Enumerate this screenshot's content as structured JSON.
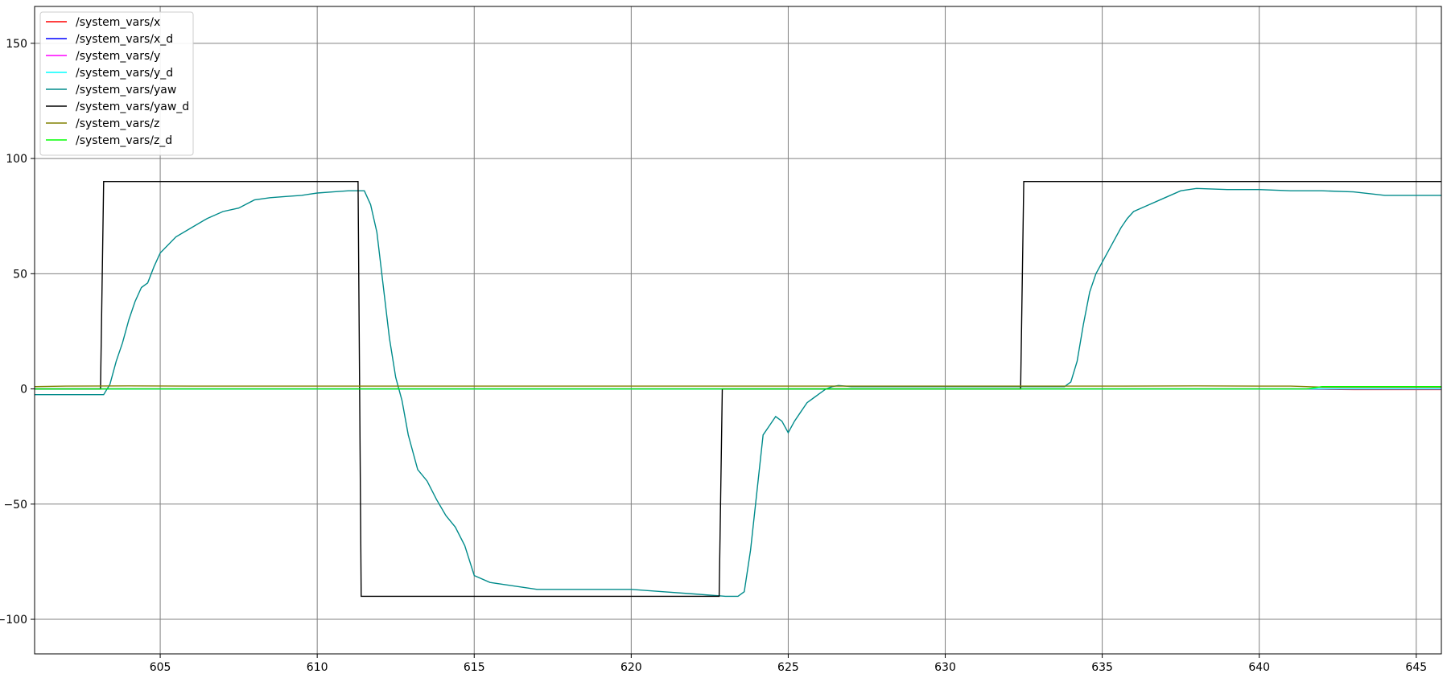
{
  "chart_data": {
    "type": "line",
    "title": "",
    "xlabel": "",
    "ylabel": "",
    "xlim": [
      601,
      645.8
    ],
    "ylim": [
      -115,
      166
    ],
    "grid": true,
    "legend_placement": "upper-left",
    "x_ticks": [
      605,
      610,
      615,
      620,
      625,
      630,
      635,
      640,
      645
    ],
    "y_ticks": [
      -100,
      -50,
      0,
      50,
      100,
      150
    ],
    "x_tick_labels": [
      "605",
      "610",
      "615",
      "620",
      "625",
      "630",
      "635",
      "640",
      "645"
    ],
    "y_tick_labels": [
      "−100",
      "−50",
      "0",
      "50",
      "100",
      "150"
    ],
    "series": [
      {
        "name": "/system_vars/x",
        "color": "#ff0000",
        "x": [
          601,
          641,
          642,
          643,
          645.8
        ],
        "y": [
          0.0,
          0.0,
          -0.2,
          -0.3,
          -0.3
        ]
      },
      {
        "name": "/system_vars/x_d",
        "color": "#0000ff",
        "x": [
          601,
          645.8
        ],
        "y": [
          0.0,
          0.0
        ]
      },
      {
        "name": "/system_vars/y",
        "color": "#ff00ff",
        "x": [
          601,
          645.8
        ],
        "y": [
          0.0,
          0.0
        ]
      },
      {
        "name": "/system_vars/y_d",
        "color": "#00ffff",
        "x": [
          601,
          645.8
        ],
        "y": [
          0.0,
          0.0
        ]
      },
      {
        "name": "/system_vars/yaw",
        "color": "#008b8b",
        "x": [
          601,
          603.2,
          603.4,
          603.6,
          603.8,
          604.0,
          604.2,
          604.4,
          604.6,
          604.8,
          605.0,
          605.5,
          606.0,
          606.5,
          607.0,
          607.5,
          608.0,
          608.5,
          609.0,
          609.5,
          610.0,
          610.5,
          611.0,
          611.5,
          611.7,
          611.9,
          612.1,
          612.3,
          612.5,
          612.7,
          612.9,
          613.2,
          613.5,
          613.8,
          614.1,
          614.4,
          614.7,
          615.0,
          615.5,
          616.0,
          616.5,
          617.0,
          618.0,
          619.0,
          620.0,
          621.0,
          622.0,
          623.0,
          623.4,
          623.6,
          623.8,
          624.0,
          624.2,
          624.4,
          624.6,
          624.8,
          625.0,
          625.2,
          625.4,
          625.6,
          625.8,
          626.0,
          626.2,
          626.4,
          626.6,
          627.0,
          628.0,
          629.0,
          630.0,
          631.0,
          632.0,
          633.0,
          633.8,
          634.0,
          634.2,
          634.4,
          634.6,
          634.8,
          635.0,
          635.2,
          635.4,
          635.6,
          635.8,
          636.0,
          636.5,
          637.0,
          637.5,
          638.0,
          639.0,
          640.0,
          641.0,
          642.0,
          643.0,
          644.0,
          645.0,
          645.8
        ],
        "y": [
          -2.5,
          -2.5,
          2,
          12,
          20,
          30,
          38,
          44,
          46,
          53,
          59,
          66,
          70,
          74,
          77,
          78.5,
          82,
          83,
          83.5,
          84,
          85,
          85.5,
          86,
          86,
          80,
          68,
          45,
          22,
          5,
          -5,
          -20,
          -35,
          -40,
          -48,
          -55,
          -60,
          -68,
          -81,
          -84,
          -85,
          -86,
          -87,
          -87,
          -87,
          -87,
          -88,
          -89,
          -90,
          -90,
          -88,
          -70,
          -45,
          -20,
          -16,
          -12,
          -14,
          -19,
          -14,
          -10,
          -6,
          -4,
          -2,
          0,
          1,
          1.5,
          1,
          1,
          1,
          1,
          1,
          1,
          1,
          1,
          3,
          12,
          28,
          42,
          50,
          55,
          60,
          65,
          70,
          74,
          77,
          80,
          83,
          86,
          87,
          86.5,
          86.5,
          86,
          86,
          85.5,
          84,
          84,
          84
        ]
      },
      {
        "name": "/system_vars/yaw_d",
        "color": "#000000",
        "x": [
          601,
          603.1,
          603.2,
          611.3,
          611.4,
          622.8,
          622.9,
          632.4,
          632.5,
          645.8
        ],
        "y": [
          0,
          0,
          90,
          90,
          -90,
          -90,
          0,
          0,
          90,
          90
        ]
      },
      {
        "name": "/system_vars/z",
        "color": "#808000",
        "x": [
          601,
          602,
          604,
          606,
          610,
          620,
          625,
          630,
          635,
          638,
          640,
          641,
          642,
          645.8
        ],
        "y": [
          1.0,
          1.2,
          1.3,
          1.2,
          1.2,
          1.2,
          1.2,
          1.2,
          1.2,
          1.3,
          1.2,
          1.2,
          0.8,
          0.8
        ]
      },
      {
        "name": "/system_vars/z_d",
        "color": "#00ff00",
        "x": [
          601,
          641.5,
          642,
          645.8
        ],
        "y": [
          0.0,
          0.0,
          1.0,
          1.0
        ]
      }
    ]
  }
}
